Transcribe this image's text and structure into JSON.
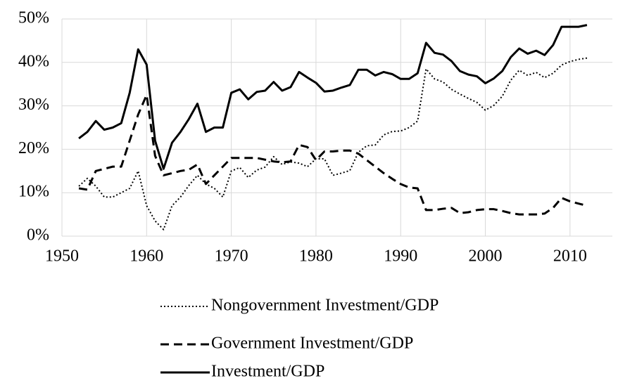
{
  "chart_data": {
    "type": "line",
    "x": [
      1952,
      1953,
      1954,
      1955,
      1956,
      1957,
      1958,
      1959,
      1960,
      1961,
      1962,
      1963,
      1964,
      1965,
      1966,
      1967,
      1968,
      1969,
      1970,
      1971,
      1972,
      1973,
      1974,
      1975,
      1976,
      1977,
      1978,
      1979,
      1980,
      1981,
      1982,
      1983,
      1984,
      1985,
      1986,
      1987,
      1988,
      1989,
      1990,
      1991,
      1992,
      1993,
      1994,
      1995,
      1996,
      1997,
      1998,
      1999,
      2000,
      2001,
      2002,
      2003,
      2004,
      2005,
      2006,
      2007,
      2008,
      2009,
      2010,
      2011,
      2012
    ],
    "series": [
      {
        "name": "Nongovernment Investment/GDP",
        "color": "#000000",
        "style": "dotted",
        "values": [
          11.5,
          13.3,
          11.5,
          9,
          9,
          10,
          11,
          15,
          7,
          3.5,
          1.5,
          7,
          9,
          11.7,
          14,
          12,
          11,
          9,
          15,
          15.8,
          13.5,
          15.2,
          15.9,
          18.3,
          16.5,
          17.1,
          16.8,
          16,
          17.8,
          17.8,
          14,
          14.5,
          15.1,
          19.3,
          20.8,
          21,
          23.3,
          24.1,
          24.2,
          25,
          26.5,
          38.5,
          36.2,
          35.5,
          33.8,
          32.7,
          31.7,
          30.8,
          29,
          30.1,
          32.2,
          35.9,
          38.2,
          37,
          37.7,
          36.5,
          37.5,
          39.4,
          40.2,
          40.7,
          41
        ]
      },
      {
        "name": "Government Investment/GDP",
        "color": "#000000",
        "style": "dashed",
        "values": [
          11,
          10.7,
          15,
          15.5,
          16,
          16,
          22,
          28,
          32.5,
          18.5,
          14,
          14.5,
          15,
          15.3,
          16.5,
          12,
          14,
          16,
          18,
          18,
          18,
          18,
          17.6,
          17.2,
          17,
          17.2,
          21,
          20.5,
          17.5,
          19.5,
          19.5,
          19.7,
          19.7,
          19,
          17.5,
          16,
          14.5,
          13.2,
          12,
          11.2,
          11,
          6,
          6,
          6.3,
          6.5,
          5.3,
          5.5,
          6,
          6.2,
          6.2,
          5.8,
          5.3,
          5,
          5,
          5,
          5.2,
          6.5,
          8.8,
          8,
          7.5,
          7
        ]
      },
      {
        "name": "Investment/GDP",
        "color": "#000000",
        "style": "solid",
        "values": [
          22.5,
          24,
          26.5,
          24.5,
          25,
          26,
          33,
          43,
          39.5,
          22,
          15.5,
          21.5,
          24,
          27,
          30.5,
          24,
          25,
          25,
          33,
          33.8,
          31.5,
          33.2,
          33.5,
          35.5,
          33.5,
          34.3,
          37.8,
          36.5,
          35.3,
          33.3,
          33.5,
          34.2,
          34.8,
          38.3,
          38.3,
          37,
          37.8,
          37.3,
          36.2,
          36.2,
          37.5,
          44.5,
          42.2,
          41.8,
          40.3,
          38,
          37.2,
          36.8,
          35.2,
          36.3,
          38,
          41.2,
          43.2,
          42,
          42.7,
          41.7,
          44,
          48.2,
          48.2,
          48.2,
          48.6
        ]
      }
    ],
    "xlim": [
      1950,
      2015
    ],
    "xticks": [
      1950,
      1960,
      1970,
      1980,
      1990,
      2000,
      2010
    ],
    "ylim": [
      0,
      50
    ],
    "yticks": [
      {
        "value": 0,
        "label": "0%"
      },
      {
        "value": 10,
        "label": "10%"
      },
      {
        "value": 20,
        "label": "20%"
      },
      {
        "value": 30,
        "label": "30%"
      },
      {
        "value": 40,
        "label": "40%"
      },
      {
        "value": 50,
        "label": "50%"
      }
    ],
    "grid": true,
    "legend_position": "bottom"
  }
}
